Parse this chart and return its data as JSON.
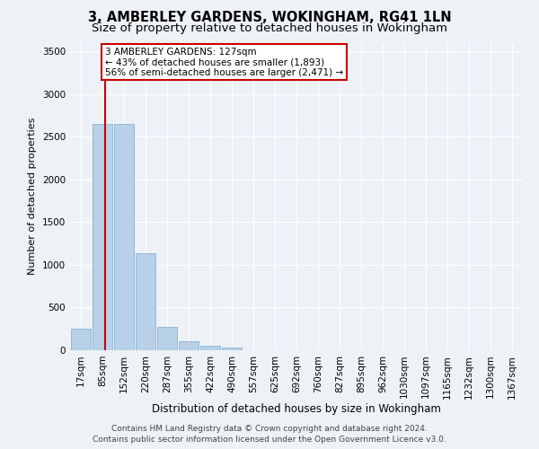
{
  "title": "3, AMBERLEY GARDENS, WOKINGHAM, RG41 1LN",
  "subtitle": "Size of property relative to detached houses in Wokingham",
  "xlabel": "Distribution of detached houses by size in Wokingham",
  "ylabel": "Number of detached properties",
  "footer_line1": "Contains HM Land Registry data © Crown copyright and database right 2024.",
  "footer_line2": "Contains public sector information licensed under the Open Government Licence v3.0.",
  "bins": [
    "17sqm",
    "85sqm",
    "152sqm",
    "220sqm",
    "287sqm",
    "355sqm",
    "422sqm",
    "490sqm",
    "557sqm",
    "625sqm",
    "692sqm",
    "760sqm",
    "827sqm",
    "895sqm",
    "962sqm",
    "1030sqm",
    "1097sqm",
    "1165sqm",
    "1232sqm",
    "1300sqm",
    "1367sqm"
  ],
  "values": [
    250,
    2650,
    2650,
    1130,
    270,
    105,
    50,
    30,
    0,
    0,
    0,
    0,
    0,
    0,
    0,
    0,
    0,
    0,
    0,
    0,
    0
  ],
  "bar_color": "#b8d0e8",
  "bar_edge_color": "#7aaac8",
  "property_size_bin": 1.5,
  "vline_color": "#cc0000",
  "annotation_text": "3 AMBERLEY GARDENS: 127sqm\n← 43% of detached houses are smaller (1,893)\n56% of semi-detached houses are larger (2,471) →",
  "annotation_box_facecolor": "#ffffff",
  "annotation_box_edgecolor": "#cc0000",
  "ylim": [
    0,
    3600
  ],
  "yticks": [
    0,
    500,
    1000,
    1500,
    2000,
    2500,
    3000,
    3500
  ],
  "bg_color": "#eef2f7",
  "plot_bg_color": "#eef2f7",
  "grid_color": "#ffffff",
  "title_fontsize": 10.5,
  "subtitle_fontsize": 9.5,
  "xlabel_fontsize": 8.5,
  "ylabel_fontsize": 8,
  "tick_fontsize": 7.5,
  "annot_fontsize": 7.5,
  "footer_fontsize": 6.5
}
